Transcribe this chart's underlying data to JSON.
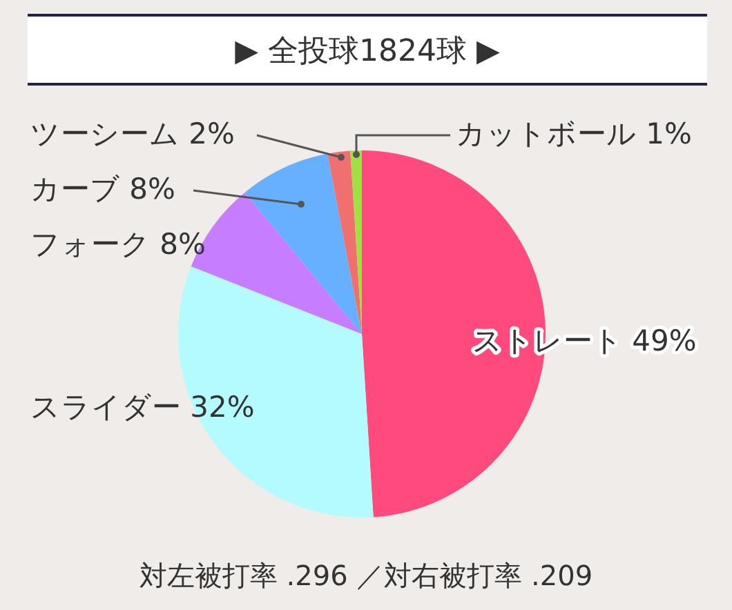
{
  "chart_data": {
    "type": "pie",
    "title": "▶ 全投球1824球 ▶",
    "categories": [
      "ストレート",
      "スライダー",
      "フォーク",
      "カーブ",
      "ツーシーム",
      "カットボール"
    ],
    "values": [
      49,
      32,
      8,
      8,
      2,
      1
    ],
    "value_labels": [
      "49%",
      "32%",
      "8%",
      "8%",
      "2%",
      "1%"
    ],
    "colors": [
      "#ff4a7d",
      "#b3fbff",
      "#c77dff",
      "#66b0ff",
      "#f07070",
      "#a0e040"
    ],
    "annotations": [
      "対左被打率 .296 ／対右被打率 .209"
    ]
  }
}
